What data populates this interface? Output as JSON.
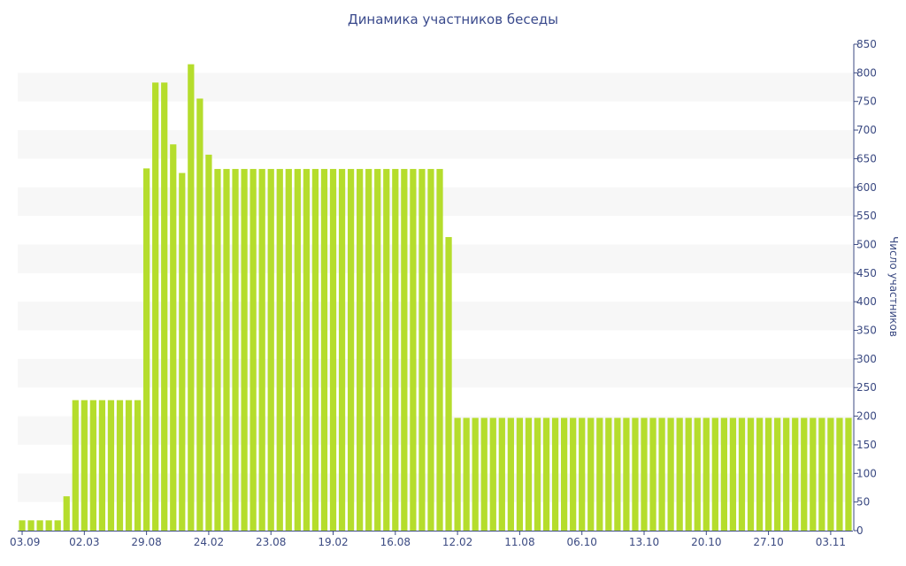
{
  "chart_data": {
    "type": "bar",
    "title": "Динамика участников беседы",
    "ylabel": "Число участников",
    "xlabel": "",
    "ylim": [
      0,
      850
    ],
    "y_ticks": [
      0,
      50,
      100,
      150,
      200,
      250,
      300,
      350,
      400,
      450,
      500,
      550,
      600,
      650,
      700,
      750,
      800,
      850
    ],
    "y_axis_side": "right",
    "grid": "alternating horizontal bands",
    "legend": "none",
    "bar_color": "#b5dd2c",
    "band_color": "#f7f7f7",
    "x_tick_labels": [
      "03.09",
      "02.03",
      "29.08",
      "24.02",
      "23.08",
      "19.02",
      "16.08",
      "12.02",
      "11.08",
      "06.10",
      "13.10",
      "20.10",
      "27.10",
      "03.11"
    ],
    "x_tick_bar_index": [
      0,
      7,
      14,
      21,
      28,
      35,
      42,
      49,
      56,
      63,
      70,
      77,
      84,
      91
    ],
    "values": [
      18,
      18,
      18,
      18,
      18,
      60,
      228,
      228,
      228,
      228,
      228,
      228,
      228,
      228,
      633,
      783,
      783,
      675,
      625,
      815,
      755,
      657,
      632,
      632,
      632,
      632,
      632,
      632,
      632,
      632,
      632,
      632,
      632,
      632,
      632,
      632,
      632,
      632,
      632,
      632,
      632,
      632,
      632,
      632,
      632,
      632,
      632,
      632,
      513,
      197,
      197,
      197,
      197,
      197,
      197,
      197,
      197,
      197,
      197,
      197,
      197,
      197,
      197,
      197,
      197,
      197,
      197,
      197,
      197,
      197,
      197,
      197,
      197,
      197,
      197,
      197,
      197,
      197,
      197,
      197,
      197,
      197,
      197,
      197,
      197,
      197,
      197,
      197,
      197,
      197,
      197,
      197,
      197,
      197
    ]
  }
}
